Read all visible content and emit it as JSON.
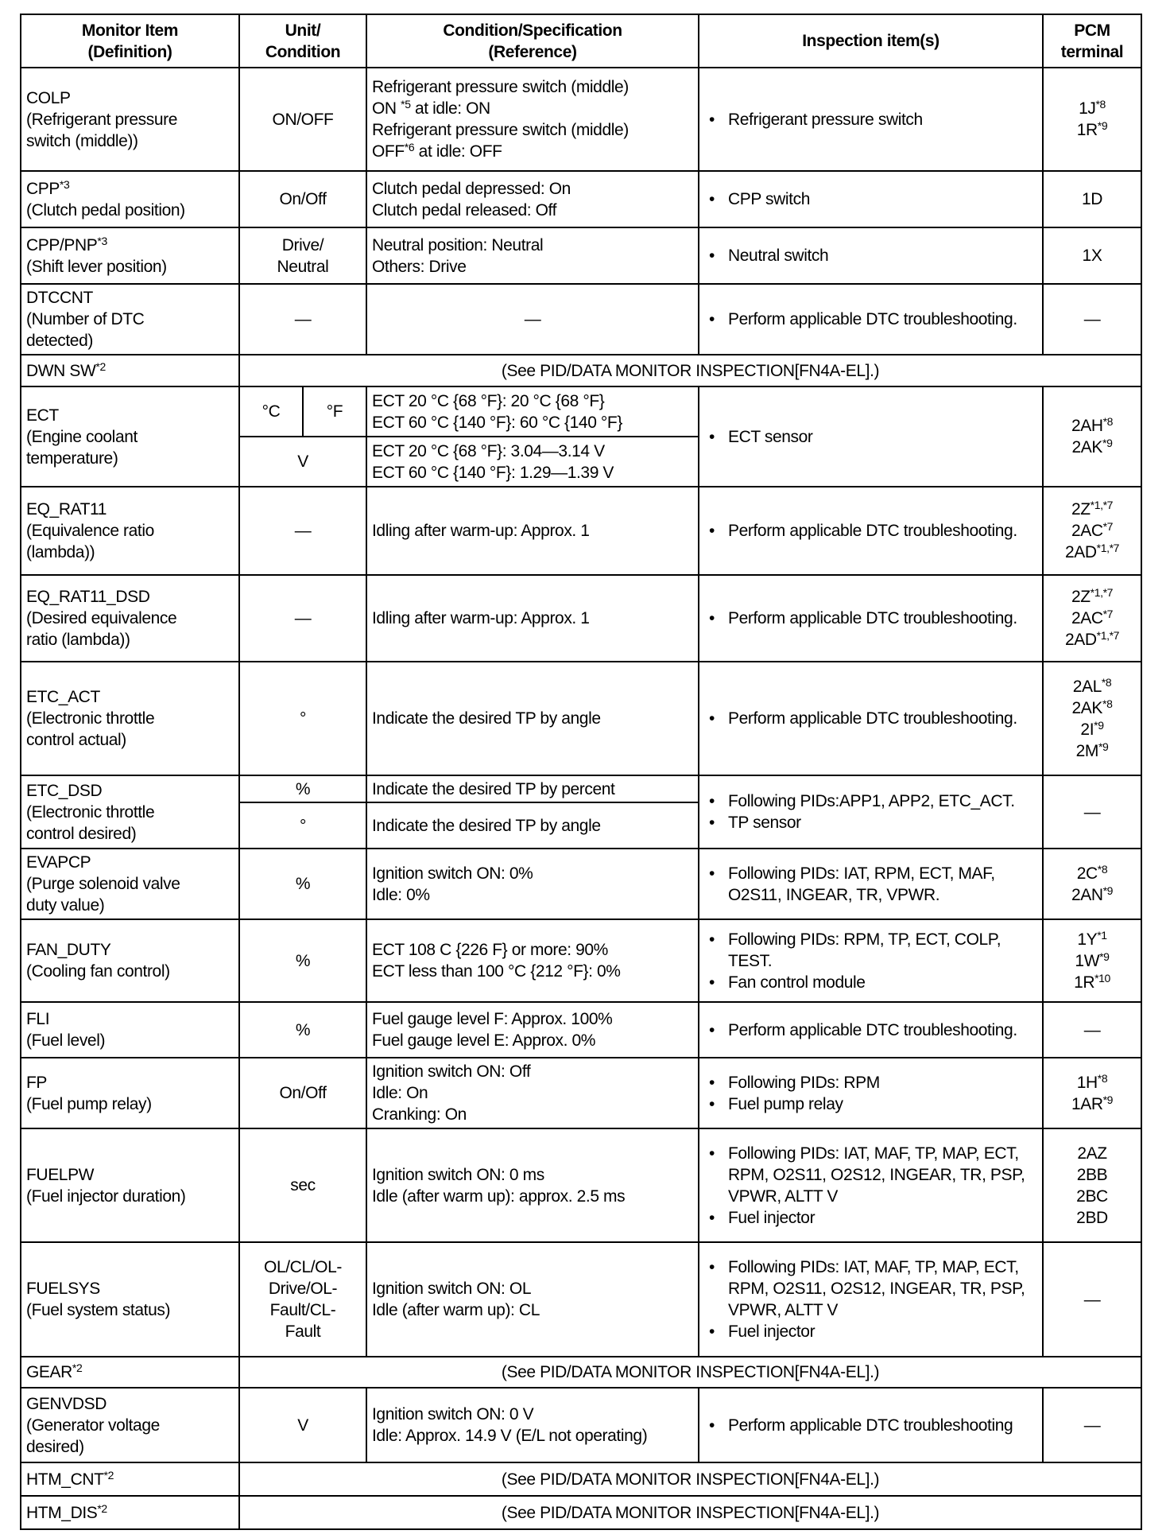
{
  "header": {
    "monitor_item": [
      "Monitor Item",
      "(Definition)"
    ],
    "unit": [
      "Unit/",
      "Condition"
    ],
    "condition": [
      "Condition/Specification",
      "(Reference)"
    ],
    "inspection": [
      "Inspection item(s)"
    ],
    "pcm": [
      "PCM",
      "terminal"
    ]
  },
  "rows": [
    {
      "type": "normal",
      "item": [
        "COLP",
        "(Refrigerant pressure",
        "switch (middle))"
      ],
      "unit": [
        "ON/OFF"
      ],
      "condition": [
        "Refrigerant pressure switch (middle)",
        {
          "text": "ON ",
          "sup": "*5",
          "after": " at idle: ON"
        },
        "Refrigerant pressure switch (middle)",
        {
          "text": "OFF",
          "sup": "*6",
          "after": " at idle: OFF"
        }
      ],
      "inspection": [
        "Refrigerant pressure switch"
      ],
      "pcm": [
        {
          "text": "1J",
          "sup": "*8"
        },
        {
          "text": "1R",
          "sup": "*9"
        }
      ]
    },
    {
      "type": "normal",
      "item": [
        {
          "text": "CPP",
          "sup": "*3"
        },
        "(Clutch pedal position)"
      ],
      "unit": [
        "On/Off"
      ],
      "condition": [
        "Clutch pedal depressed: On",
        "Clutch pedal released: Off"
      ],
      "inspection": [
        "CPP switch"
      ],
      "pcm": [
        "1D"
      ]
    },
    {
      "type": "normal",
      "item": [
        {
          "text": "CPP/PNP",
          "sup": "*3"
        },
        "(Shift lever position)"
      ],
      "unit": [
        "Drive/",
        "Neutral"
      ],
      "condition": [
        "Neutral position: Neutral",
        "Others: Drive"
      ],
      "inspection": [
        "Neutral switch"
      ],
      "pcm": [
        "1X"
      ]
    },
    {
      "type": "normal",
      "item": [
        "DTCCNT",
        "(Number of DTC",
        "detected)"
      ],
      "unit": [
        "—"
      ],
      "condition": [
        "—"
      ],
      "condition_center": true,
      "inspection": [
        "Perform applicable DTC troubleshooting."
      ],
      "pcm": [
        "—"
      ]
    },
    {
      "type": "see",
      "item": [
        {
          "text": "DWN SW",
          "sup": "*2"
        }
      ],
      "text": "(See PID/DATA MONITOR INSPECTION[FN4A-EL].)"
    },
    {
      "type": "ect",
      "item": [
        "ECT",
        "(Engine coolant",
        "temperature)"
      ],
      "unit_c": "°C",
      "unit_f": "°F",
      "unit_v": "V",
      "condition_temp": [
        "ECT 20 °C {68 °F}: 20 °C {68 °F}",
        "ECT 60 °C {140 °F}: 60 °C {140 °F}"
      ],
      "condition_v": [
        "ECT 20 °C {68 °F}: 3.04—3.14 V",
        "ECT 60 °C {140 °F}: 1.29—1.39 V"
      ],
      "inspection": [
        "ECT sensor"
      ],
      "pcm": [
        {
          "text": "2AH",
          "sup": "*8"
        },
        {
          "text": "2AK",
          "sup": "*9"
        }
      ]
    },
    {
      "type": "normal",
      "item": [
        "EQ_RAT11",
        "(Equivalence ratio",
        "(lambda))"
      ],
      "unit": [
        "—"
      ],
      "condition": [
        "Idling after warm-up: Approx. 1"
      ],
      "inspection": [
        "Perform applicable DTC troubleshooting."
      ],
      "pcm": [
        {
          "text": "2Z",
          "sup": "*1,*7"
        },
        {
          "text": "2AC",
          "sup": "*7"
        },
        {
          "text": "2AD",
          "sup": "*1,*7"
        }
      ]
    },
    {
      "type": "normal",
      "item": [
        "EQ_RAT11_DSD",
        "(Desired equivalence",
        "ratio (lambda))"
      ],
      "unit": [
        "—"
      ],
      "condition": [
        "Idling after warm-up: Approx. 1"
      ],
      "inspection": [
        "Perform applicable DTC troubleshooting."
      ],
      "pcm": [
        {
          "text": "2Z",
          "sup": "*1,*7"
        },
        {
          "text": "2AC",
          "sup": "*7"
        },
        {
          "text": "2AD",
          "sup": "*1,*7"
        }
      ]
    },
    {
      "type": "normal",
      "item": [
        "ETC_ACT",
        "(Electronic throttle",
        "control actual)"
      ],
      "unit": [
        "°"
      ],
      "condition": [
        "Indicate the desired TP by angle"
      ],
      "inspection": [
        "Perform applicable DTC troubleshooting."
      ],
      "pcm": [
        {
          "text": "2AL",
          "sup": "*8"
        },
        {
          "text": "2AK",
          "sup": "*8"
        },
        {
          "text": "2I",
          "sup": "*9"
        },
        {
          "text": "2M",
          "sup": "*9"
        }
      ]
    },
    {
      "type": "split",
      "item": [
        "ETC_DSD",
        "(Electronic throttle",
        "control desired)"
      ],
      "sub": [
        {
          "unit": "%",
          "condition": "Indicate the desired TP by percent"
        },
        {
          "unit": "°",
          "condition": "Indicate the desired TP by angle"
        }
      ],
      "inspection": [
        "Following PIDs:APP1, APP2, ETC_ACT.",
        "TP sensor"
      ],
      "pcm": [
        "—"
      ]
    },
    {
      "type": "normal",
      "item": [
        "EVAPCP",
        "(Purge solenoid valve",
        "duty value)"
      ],
      "unit": [
        "%"
      ],
      "condition": [
        "Ignition switch ON: 0%",
        "Idle: 0%"
      ],
      "inspection": [
        "Following PIDs: IAT, RPM, ECT, MAF, O2S11, INGEAR, TR, VPWR."
      ],
      "pcm": [
        {
          "text": "2C",
          "sup": "*8"
        },
        {
          "text": "2AN",
          "sup": "*9"
        }
      ]
    },
    {
      "type": "normal",
      "item": [
        "FAN_DUTY",
        "(Cooling fan control)"
      ],
      "unit": [
        "%"
      ],
      "condition": [
        "ECT 108 C {226 F} or more: 90%",
        "ECT less than 100 °C {212 °F}: 0%"
      ],
      "inspection": [
        "Following PIDs: RPM, TP, ECT, COLP, TEST.",
        "Fan control module"
      ],
      "pcm": [
        {
          "text": "1Y",
          "sup": "*1"
        },
        {
          "text": "1W",
          "sup": "*9"
        },
        {
          "text": "1R",
          "sup": "*10"
        }
      ]
    },
    {
      "type": "normal",
      "item": [
        "FLI",
        "(Fuel level)"
      ],
      "unit": [
        "%"
      ],
      "condition": [
        "Fuel gauge level F: Approx. 100%",
        "Fuel gauge level E: Approx. 0%"
      ],
      "inspection": [
        "Perform applicable DTC troubleshooting."
      ],
      "pcm": [
        "—"
      ]
    },
    {
      "type": "normal",
      "item": [
        "FP",
        "(Fuel pump relay)"
      ],
      "unit": [
        "On/Off"
      ],
      "condition": [
        "Ignition switch ON: Off",
        "Idle: On",
        "Cranking: On"
      ],
      "inspection": [
        "Following PIDs: RPM",
        "Fuel pump relay"
      ],
      "pcm": [
        {
          "text": "1H",
          "sup": "*8"
        },
        {
          "text": "1AR",
          "sup": "*9"
        }
      ]
    },
    {
      "type": "normal",
      "item": [
        "FUELPW",
        "(Fuel injector duration)"
      ],
      "unit": [
        "sec"
      ],
      "condition": [
        "Ignition switch ON: 0 ms",
        "Idle (after warm up): approx. 2.5 ms"
      ],
      "inspection": [
        "Following PIDs: IAT, MAF, TP, MAP, ECT, RPM, O2S11, O2S12, INGEAR, TR, PSP, VPWR, ALTT V",
        "Fuel injector"
      ],
      "pcm": [
        "2AZ",
        "2BB",
        "2BC",
        "2BD"
      ]
    },
    {
      "type": "normal",
      "item": [
        "FUELSYS",
        "(Fuel system status)"
      ],
      "unit": [
        "OL/CL/OL-",
        "Drive/OL-",
        "Fault/CL-",
        "Fault"
      ],
      "condition": [
        "Ignition switch ON: OL",
        "Idle (after warm up): CL"
      ],
      "inspection": [
        "Following PIDs: IAT, MAF, TP, MAP, ECT, RPM, O2S11, O2S12, INGEAR, TR, PSP, VPWR, ALTT V",
        "Fuel injector"
      ],
      "pcm": [
        "—"
      ]
    },
    {
      "type": "see",
      "item": [
        {
          "text": "GEAR",
          "sup": "*2"
        }
      ],
      "text": "(See  PID/DATA MONITOR INSPECTION[FN4A-EL].)"
    },
    {
      "type": "normal",
      "item": [
        "GENVDSD",
        "(Generator voltage",
        "desired)"
      ],
      "unit": [
        "V"
      ],
      "condition": [
        "Ignition switch ON: 0 V",
        "Idle: Approx. 14.9 V (E/L not operating)"
      ],
      "inspection": [
        "Perform applicable DTC troubleshooting"
      ],
      "pcm": [
        "—"
      ]
    },
    {
      "type": "see",
      "item": [
        {
          "text": "HTM_CNT",
          "sup": "*2"
        }
      ],
      "text": "(See PID/DATA MONITOR INSPECTION[FN4A-EL].)"
    },
    {
      "type": "see",
      "item": [
        {
          "text": "HTM_DIS",
          "sup": "*2"
        }
      ],
      "text": "(See  PID/DATA MONITOR INSPECTION[FN4A-EL].)"
    }
  ]
}
